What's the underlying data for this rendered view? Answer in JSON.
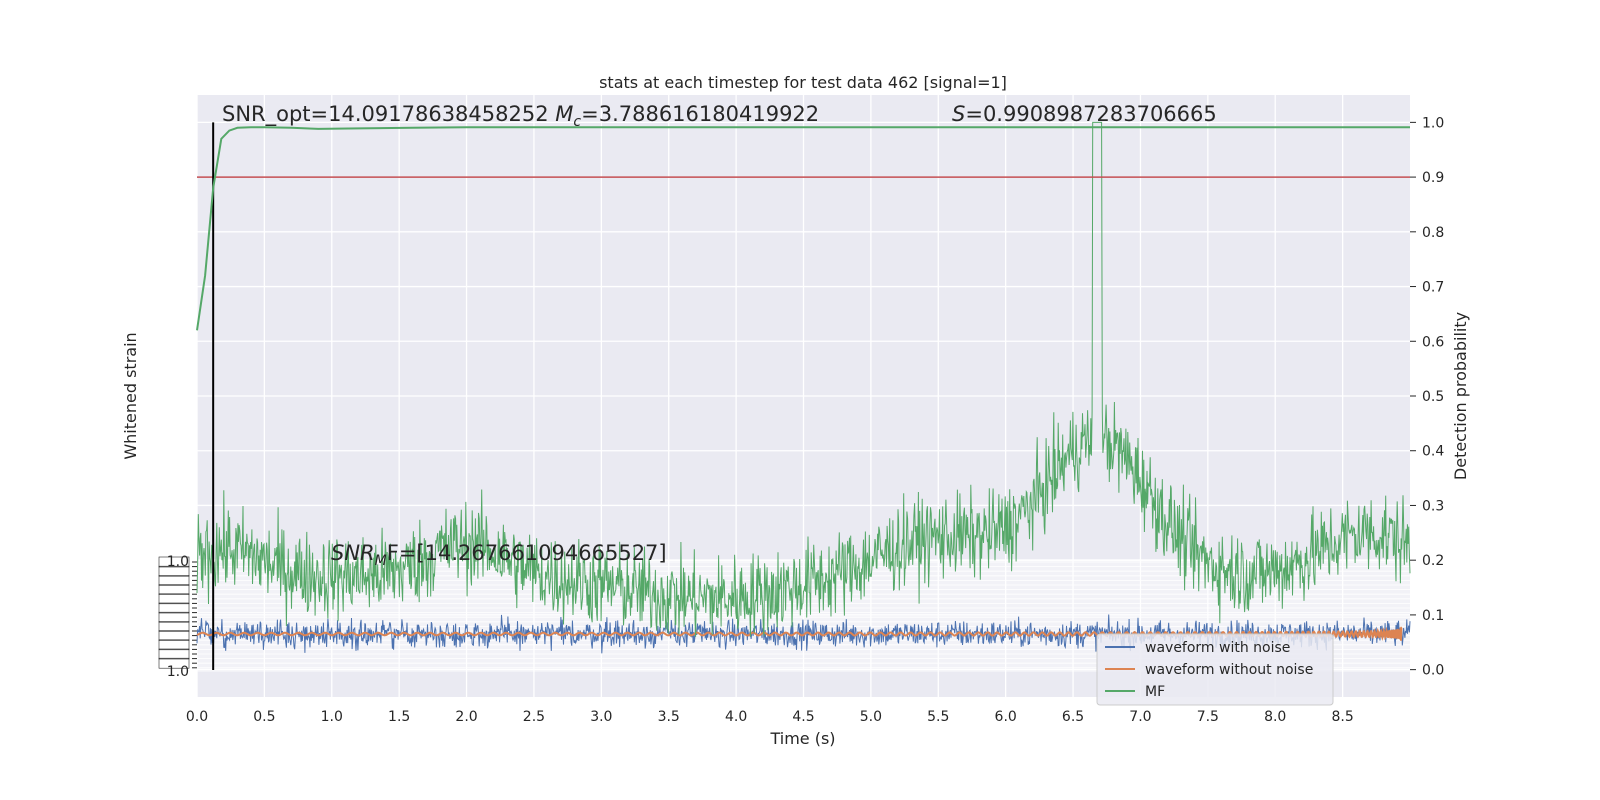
{
  "chart_data": {
    "type": "line",
    "title": "stats at each timestep for test data 462 [signal=1]",
    "xlabel": "Time (s)",
    "ylabel_left": "Whitened strain",
    "ylabel_right": "Detection probability",
    "xlim": [
      0.0,
      9.0
    ],
    "ylim_right": [
      -0.05,
      1.05
    ],
    "ylim_left": [
      -1.0,
      1.0
    ],
    "x_ticks": [
      "0.0",
      "0.5",
      "1.0",
      "1.5",
      "2.0",
      "2.5",
      "3.0",
      "3.5",
      "4.0",
      "4.5",
      "5.0",
      "5.5",
      "6.0",
      "6.5",
      "7.0",
      "7.5",
      "8.0",
      "8.5"
    ],
    "y_right_ticks": [
      "0.0",
      "0.1",
      "0.2",
      "0.3",
      "0.4",
      "0.5",
      "0.6",
      "0.7",
      "0.8",
      "0.9",
      "1.0"
    ],
    "y_left_top_tick": "1.0",
    "y_left_bottom_tick": "1.0",
    "annotations": {
      "snr_opt": "SNR_opt=14.09178638458252",
      "mc_symbol": "M",
      "mc_sub": "c",
      "mc_value": "=3.788616180419922",
      "s_symbol": "S",
      "s_value": "=0.9908987283706665",
      "snr_mf_symbol": "SNR",
      "snr_mf_sub": "M",
      "snr_mf_value": "F=[14.267661094665527]"
    },
    "threshold": 0.9,
    "detection_marker_time": 0.12,
    "peak_time": 6.68,
    "detection_probability": {
      "x": [
        0.0,
        0.06,
        0.12,
        0.18,
        0.24,
        0.3,
        0.4,
        0.5,
        0.7,
        0.9,
        1.2,
        1.6,
        2.0,
        3.0,
        4.0,
        5.0,
        6.0,
        7.0,
        8.0,
        9.0
      ],
      "y": [
        0.62,
        0.72,
        0.88,
        0.97,
        0.985,
        0.99,
        0.991,
        0.991,
        0.99,
        0.988,
        0.989,
        0.99,
        0.991,
        0.991,
        0.991,
        0.991,
        0.991,
        0.991,
        0.991,
        0.991
      ]
    },
    "series": [
      {
        "name": "waveform with noise",
        "color": "#4c72b0"
      },
      {
        "name": "waveform without noise",
        "color": "#dd8452"
      },
      {
        "name": "MF",
        "color": "#55a868"
      }
    ],
    "threshold_color": "#c44e52",
    "legend_position": "lower-right",
    "grid": true
  }
}
